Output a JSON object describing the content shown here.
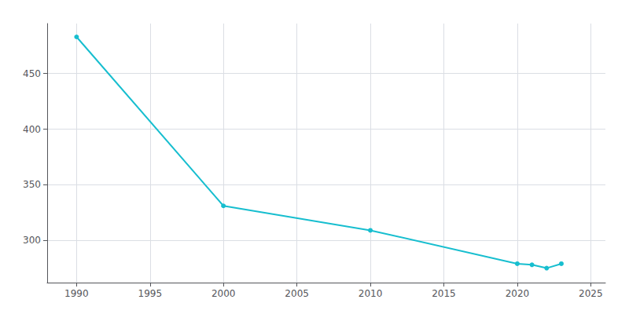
{
  "chart_data": {
    "type": "line",
    "x": [
      1990,
      2000,
      2010,
      2020,
      2021,
      2022,
      2023
    ],
    "values": [
      483,
      331,
      309,
      279,
      278,
      275,
      279
    ],
    "color": "#17BECF",
    "marker": "circle",
    "xlim": [
      1988,
      2026
    ],
    "ylim": [
      262,
      495
    ],
    "xticks": [
      1990,
      1995,
      2000,
      2005,
      2010,
      2015,
      2020,
      2025
    ],
    "yticks": [
      300,
      350,
      400,
      450
    ],
    "grid": true
  }
}
